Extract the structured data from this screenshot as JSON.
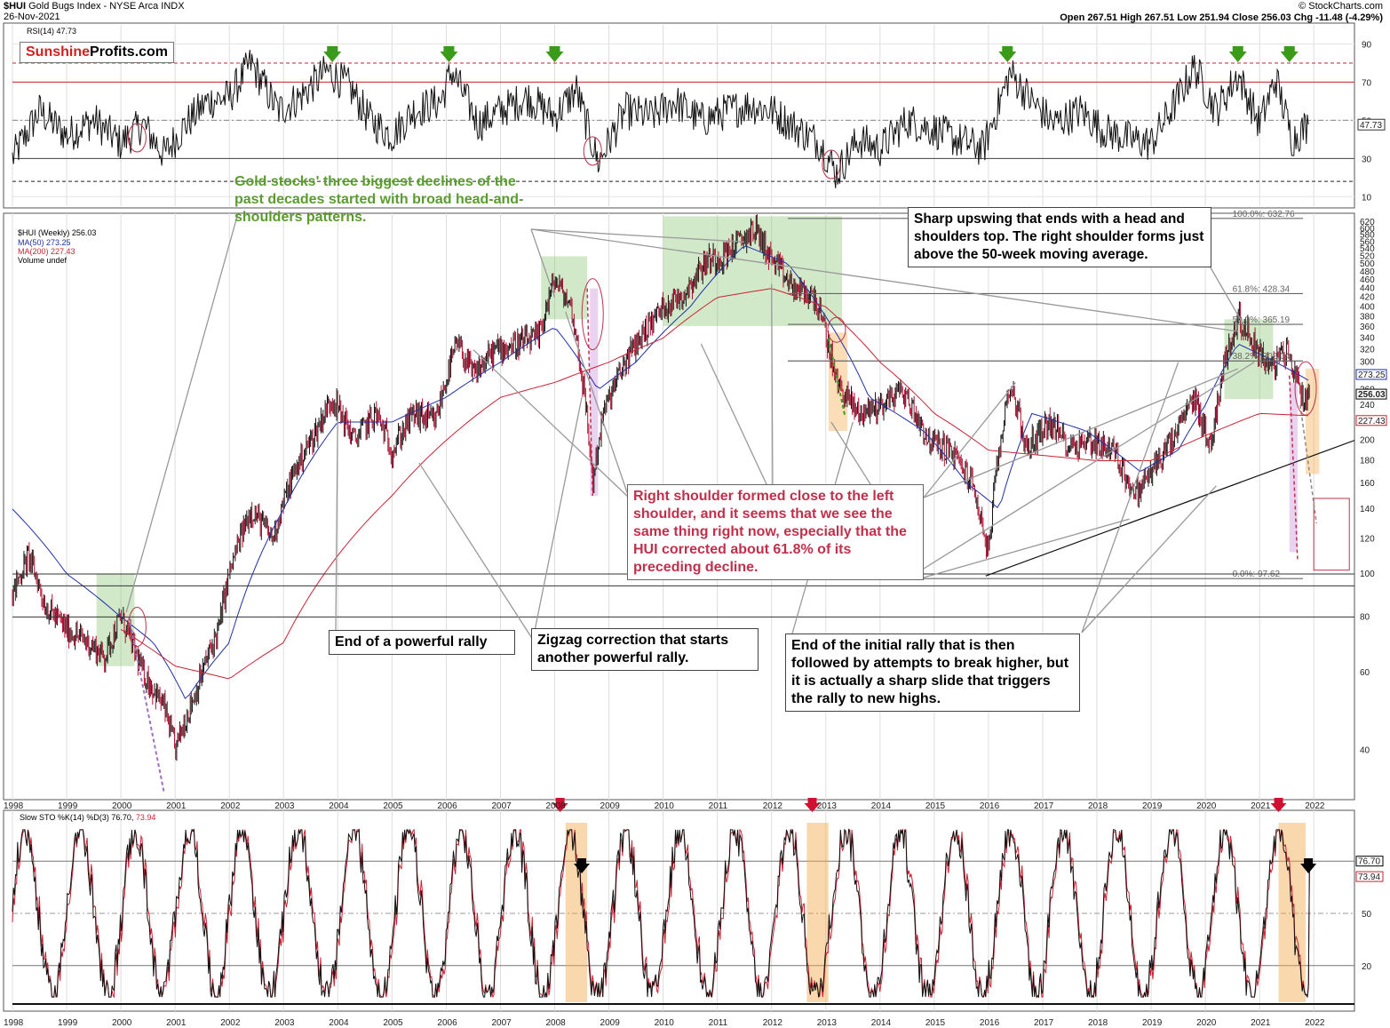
{
  "header": {
    "symbol": "$HUI",
    "name": "Gold Bugs Index - NYSE Arca INDX",
    "date": "26-Nov-2021",
    "credit": "© StockCharts.com",
    "ohlc": "Open 267.51  High 267.51  Low 251.94  Close 256.03  Chg -11.48 (-4.29%)"
  },
  "logo": {
    "part1": "Sunshine",
    "part2": "Profits.com"
  },
  "legends": {
    "rsi": "RSI(14) 47.73",
    "price": "$HUI (Weekly) 256.03",
    "ma50": "MA(50) 273.25",
    "ma200": "MA(200) 227.43",
    "volume": "Volume undef",
    "sto_prefix": "Slow STO %K(14) %D(3) 76.70,",
    "sto_d": "73.94"
  },
  "colors": {
    "ma50": "#1f2fa8",
    "ma200": "#cc2233",
    "up": "#111111",
    "down": "#b01030",
    "green_zone": "#7fbf63",
    "orange_zone": "#f5a94a",
    "annotation_red": "#c0304a"
  },
  "annotations": {
    "hs_note": "Gold stocks' three biggest declines of the past decades started with broad head-and-shoulders patterns.",
    "sharp_upswing": "Sharp upswing that ends with a head and shoulders top. The right shoulder forms just above the 50-week moving average.",
    "right_shoulder": "Right shoulder formed close to the left shoulder, and it seems that we see the same thing right now, especially that the HUI corrected about 61.8% of its preceding decline.",
    "end_rally": "End of a powerful rally",
    "zigzag": "Zigzag correction that starts another powerful rally.",
    "initial_rally": "End of the initial rally that is then followed by attempts to break higher, but it is actually a sharp slide that triggers the rally to new highs."
  },
  "chart_data": [
    {
      "type": "line",
      "panel": "RSI(14)",
      "y_ticks": [
        10,
        30,
        50,
        70,
        90
      ],
      "ylim": [
        5,
        100
      ],
      "reference_lines": [
        30,
        50,
        70,
        80,
        18
      ],
      "last_value": 47.73,
      "last_label": "47.73",
      "x_years": [
        1998,
        1999,
        2000,
        2001,
        2002,
        2003,
        2004,
        2005,
        2006,
        2007,
        2008,
        2009,
        2010,
        2011,
        2012,
        2013,
        2014,
        2015,
        2016,
        2017,
        2018,
        2019,
        2020,
        2021,
        2022
      ],
      "series": [
        {
          "x": [
            1998.0,
            1998.5,
            1999.0,
            1999.5,
            2000.0,
            2000.4,
            2000.8,
            2001.2,
            2001.6,
            2002.0,
            2002.4,
            2002.9,
            2003.3,
            2003.8,
            2004.2,
            2004.6,
            2005.0,
            2005.4,
            2005.9,
            2006.1,
            2006.6,
            2007.0,
            2007.5,
            2008.0,
            2008.4,
            2008.8,
            2009.3,
            2009.8,
            2010.2,
            2010.7,
            2011.2,
            2011.6,
            2012.0,
            2012.5,
            2012.9,
            2013.2,
            2013.6,
            2014.0,
            2014.5,
            2015.0,
            2015.4,
            2015.9,
            2016.4,
            2016.8,
            2017.2,
            2017.7,
            2018.1,
            2018.6,
            2019.0,
            2019.5,
            2019.8,
            2020.2,
            2020.6,
            2021.0,
            2021.3,
            2021.6,
            2021.9
          ],
          "values": [
            30,
            55,
            42,
            50,
            38,
            48,
            32,
            48,
            60,
            62,
            80,
            55,
            62,
            76,
            68,
            50,
            42,
            55,
            60,
            76,
            48,
            55,
            62,
            52,
            66,
            28,
            55,
            52,
            60,
            50,
            55,
            58,
            55,
            45,
            38,
            22,
            40,
            35,
            50,
            45,
            40,
            35,
            75,
            60,
            48,
            55,
            45,
            40,
            38,
            62,
            78,
            55,
            74,
            48,
            72,
            40,
            47.73
          ]
        }
      ]
    },
    {
      "type": "candlestick",
      "panel": "$HUI (Weekly)",
      "scale": "log",
      "y_ticks": [
        40,
        60,
        80,
        100,
        120,
        140,
        160,
        180,
        200,
        220,
        240,
        260,
        280,
        300,
        320,
        340,
        360,
        380,
        400,
        420,
        440,
        460,
        480,
        500,
        520,
        540,
        560,
        580,
        600,
        620,
        640
      ],
      "ylim": [
        31,
        650
      ],
      "last_close": 256.03,
      "last_label": "256.03",
      "ma50_last": 273.25,
      "ma50_label": "273.25",
      "ma200_last": 227.43,
      "ma200_label": "227.43",
      "fib_levels": [
        {
          "label": "100.0%: 632.76",
          "value": 632.76
        },
        {
          "label": "61.8%: 428.34",
          "value": 428.34
        },
        {
          "label": "50.0%: 365.19",
          "value": 365.19
        },
        {
          "label": "38.2%: 302.04",
          "value": 302.04
        },
        {
          "label": "0.0%: 97.62",
          "value": 97.62
        }
      ],
      "series": [
        {
          "name": "$HUI",
          "x": [
            1998.0,
            1998.3,
            1998.6,
            1999.0,
            1999.4,
            1999.7,
            2000.0,
            2000.4,
            2000.8,
            2001.0,
            2001.4,
            2001.8,
            2002.0,
            2002.4,
            2002.8,
            2003.2,
            2003.6,
            2003.9,
            2004.3,
            2004.7,
            2005.0,
            2005.4,
            2005.8,
            2006.2,
            2006.5,
            2006.9,
            2007.3,
            2007.7,
            2008.0,
            2008.3,
            2008.7,
            2008.9,
            2009.3,
            2009.7,
            2010.0,
            2010.4,
            2010.8,
            2011.1,
            2011.4,
            2011.7,
            2012.0,
            2012.4,
            2012.8,
            2013.2,
            2013.6,
            2014.0,
            2014.4,
            2014.9,
            2015.3,
            2015.7,
            2016.0,
            2016.4,
            2016.7,
            2017.1,
            2017.5,
            2017.9,
            2018.3,
            2018.7,
            2019.0,
            2019.4,
            2019.8,
            2020.1,
            2020.3,
            2020.6,
            2020.9,
            2021.2,
            2021.5,
            2021.8,
            2021.9
          ],
          "values": [
            90,
            110,
            85,
            75,
            70,
            65,
            80,
            60,
            50,
            40,
            55,
            75,
            100,
            140,
            120,
            170,
            210,
            250,
            200,
            230,
            190,
            230,
            220,
            330,
            280,
            320,
            330,
            340,
            460,
            400,
            160,
            230,
            300,
            360,
            400,
            430,
            510,
            520,
            560,
            600,
            510,
            440,
            420,
            270,
            230,
            240,
            260,
            200,
            190,
            160,
            110,
            270,
            190,
            220,
            195,
            200,
            190,
            150,
            170,
            200,
            250,
            190,
            280,
            380,
            330,
            290,
            320,
            250,
            256.03
          ]
        },
        {
          "name": "MA(50)",
          "x": [
            1998.0,
            1999.0,
            2000.0,
            2000.6,
            2001.2,
            2002.0,
            2003.0,
            2004.0,
            2005.0,
            2006.0,
            2007.0,
            2008.0,
            2008.8,
            2009.5,
            2010.5,
            2011.5,
            2012.3,
            2013.0,
            2013.8,
            2014.8,
            2015.6,
            2016.2,
            2016.8,
            2017.8,
            2018.8,
            2019.5,
            2020.0,
            2020.6,
            2021.3,
            2021.9
          ],
          "values": [
            140,
            100,
            80,
            70,
            52,
            70,
            140,
            220,
            220,
            250,
            300,
            360,
            260,
            300,
            400,
            550,
            500,
            380,
            250,
            210,
            160,
            140,
            230,
            210,
            170,
            190,
            240,
            330,
            300,
            273.25
          ]
        },
        {
          "name": "MA(200)",
          "x": [
            2000.0,
            2001.0,
            2002.0,
            2003.0,
            2004.0,
            2005.0,
            2006.0,
            2007.0,
            2008.0,
            2009.0,
            2010.0,
            2011.0,
            2012.0,
            2013.0,
            2014.0,
            2015.0,
            2016.0,
            2017.0,
            2018.0,
            2019.0,
            2020.0,
            2021.0,
            2021.9
          ],
          "values": [
            75,
            62,
            58,
            70,
            110,
            150,
            200,
            250,
            270,
            300,
            340,
            420,
            440,
            400,
            300,
            230,
            190,
            185,
            180,
            180,
            205,
            230,
            227.43
          ]
        }
      ]
    },
    {
      "type": "line",
      "panel": "Slow STO %K(14) %D(3)",
      "y_ticks": [
        20,
        50,
        80
      ],
      "ylim": [
        0,
        100
      ],
      "k_last": 76.7,
      "k_label": "76.70",
      "d_last": 73.94,
      "d_label": "73.94",
      "x_years": [
        1998,
        1999,
        2000,
        2001,
        2002,
        2003,
        2004,
        2005,
        2006,
        2007,
        2008,
        2009,
        2010,
        2011,
        2012,
        2013,
        2014,
        2015,
        2016,
        2017,
        2018,
        2019,
        2020,
        2021,
        2022
      ]
    }
  ]
}
